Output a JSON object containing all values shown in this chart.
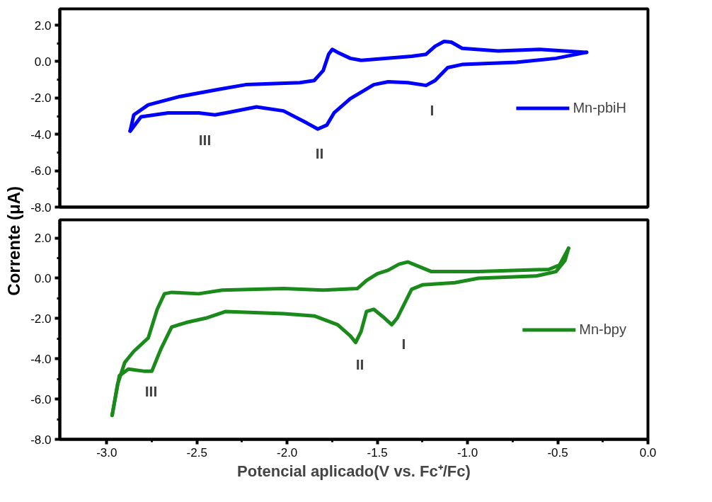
{
  "chart_data": [
    {
      "type": "line",
      "ylabel": "Corrente (μA)",
      "xlim": [
        -3.26,
        0
      ],
      "ylim": [
        -8,
        2.9
      ],
      "xticks": [
        {
          "value": -3,
          "label": null
        },
        {
          "value": -2.5,
          "label": null
        },
        {
          "value": -2,
          "label": null
        },
        {
          "value": -1.5,
          "label": null
        },
        {
          "value": -1,
          "label": null
        },
        {
          "value": -0.5,
          "label": null
        },
        {
          "value": 0,
          "label": null
        }
      ],
      "yticks": [
        {
          "value": 2,
          "label": "2.0"
        },
        {
          "value": 0,
          "label": "0.0"
        },
        {
          "value": -2,
          "label": "-2.0"
        },
        {
          "value": -4,
          "label": "-4.0"
        },
        {
          "value": -6,
          "label": "-6.0"
        },
        {
          "value": -8,
          "label": "-8.0"
        }
      ],
      "tick_labels": "y",
      "grid": false,
      "legend": "right",
      "series": [
        {
          "name": "Mn-pbiH",
          "color": "#0000ff",
          "x": [
            -0.34,
            -0.6,
            -0.83,
            -1.03,
            -1.09,
            -1.13,
            -1.18,
            -1.23,
            -1.31,
            -1.59,
            -1.65,
            -1.72,
            -1.75,
            -1.77,
            -1.8,
            -1.85,
            -1.93,
            -2.23,
            -2.38,
            -2.6,
            -2.77,
            -2.85,
            -2.87
          ],
          "values": [
            0.51,
            0.67,
            0.58,
            0.73,
            1.07,
            1.11,
            0.84,
            0.4,
            0.29,
            0.07,
            0.18,
            0.51,
            0.67,
            0.4,
            -0.49,
            -1.04,
            -1.16,
            -1.27,
            -1.53,
            -1.93,
            -2.38,
            -2.93,
            -3.82
          ]
        },
        {
          "color": "#0000ff",
          "x": [
            -2.87,
            -2.81,
            -2.66,
            -2.49,
            -2.4,
            -2.34,
            -2.17,
            -2.02,
            -1.89,
            -1.83,
            -1.78,
            -1.74,
            -1.65,
            -1.52,
            -1.44,
            -1.33,
            -1.23,
            -1.18,
            -1.11,
            -1.03,
            -0.73,
            -0.51,
            -0.34
          ],
          "values": [
            -3.82,
            -3.04,
            -2.82,
            -2.82,
            -2.93,
            -2.82,
            -2.49,
            -2.71,
            -3.38,
            -3.71,
            -3.49,
            -2.82,
            -2.04,
            -1.27,
            -1.11,
            -1.16,
            -1.31,
            -1.04,
            -0.33,
            -0.16,
            -0.04,
            0.18,
            0.51
          ]
        }
      ],
      "annotations": [
        "III",
        "II",
        "I"
      ]
    },
    {
      "type": "line",
      "xlabel": "Potencial aplicado(V vs. Fc⁺/Fc)",
      "xlim": [
        -3.26,
        0
      ],
      "ylim": [
        -8,
        2.9
      ],
      "xticks": [
        {
          "value": -3,
          "label": "-3.0"
        },
        {
          "value": -2.5,
          "label": "-2.5"
        },
        {
          "value": -2,
          "label": "-2.0"
        },
        {
          "value": -1.5,
          "label": "-1.5"
        },
        {
          "value": -1,
          "label": "-1.0"
        },
        {
          "value": -0.5,
          "label": "-0.5"
        },
        {
          "value": 0,
          "label": "0.0"
        }
      ],
      "yticks": [
        {
          "value": 2,
          "label": "2.0"
        },
        {
          "value": 0,
          "label": "0.0"
        },
        {
          "value": -2,
          "label": "-2.0"
        },
        {
          "value": -4,
          "label": "-4.0"
        },
        {
          "value": -6,
          "label": "-6.0"
        },
        {
          "value": -8,
          "label": "-8.0"
        }
      ],
      "grid": false,
      "legend": "right",
      "series": [
        {
          "name": "Mn-bpy",
          "color": "#1a8a1a",
          "x": [
            -0.44,
            -0.49,
            -0.55,
            -0.94,
            -1.2,
            -1.26,
            -1.33,
            -1.38,
            -1.44,
            -1.5,
            -1.56,
            -1.61,
            -1.8,
            -2.02,
            -2.36,
            -2.49,
            -2.64,
            -2.68,
            -2.72,
            -2.77,
            -2.85,
            -2.9,
            -2.94,
            -2.97
          ],
          "values": [
            1.49,
            0.66,
            0.44,
            0.33,
            0.33,
            0.55,
            0.81,
            0.7,
            0.4,
            0.22,
            -0.11,
            -0.51,
            -0.59,
            -0.51,
            -0.59,
            -0.77,
            -0.7,
            -0.77,
            -1.54,
            -2.97,
            -3.63,
            -4.18,
            -5.27,
            -6.81
          ]
        },
        {
          "color": "#1a8a1a",
          "x": [
            -2.97,
            -2.93,
            -2.88,
            -2.79,
            -2.75,
            -2.7,
            -2.64,
            -2.56,
            -2.45,
            -2.34,
            -2.02,
            -1.85,
            -1.72,
            -1.65,
            -1.62,
            -1.59,
            -1.56,
            -1.52,
            -1.46,
            -1.42,
            -1.39,
            -1.31,
            -1.25,
            -1.07,
            -0.94,
            -0.62,
            -0.51,
            -0.46,
            -0.44
          ],
          "values": [
            -6.81,
            -4.84,
            -4.51,
            -4.62,
            -4.62,
            -3.52,
            -2.42,
            -2.2,
            -1.98,
            -1.65,
            -1.76,
            -1.87,
            -2.31,
            -2.86,
            -3.19,
            -2.64,
            -1.65,
            -1.54,
            -1.98,
            -2.31,
            -1.98,
            -0.55,
            -0.33,
            -0.22,
            0.0,
            0.11,
            0.33,
            0.88,
            1.49
          ]
        }
      ],
      "annotations": [
        "III",
        "II",
        "I"
      ]
    }
  ]
}
